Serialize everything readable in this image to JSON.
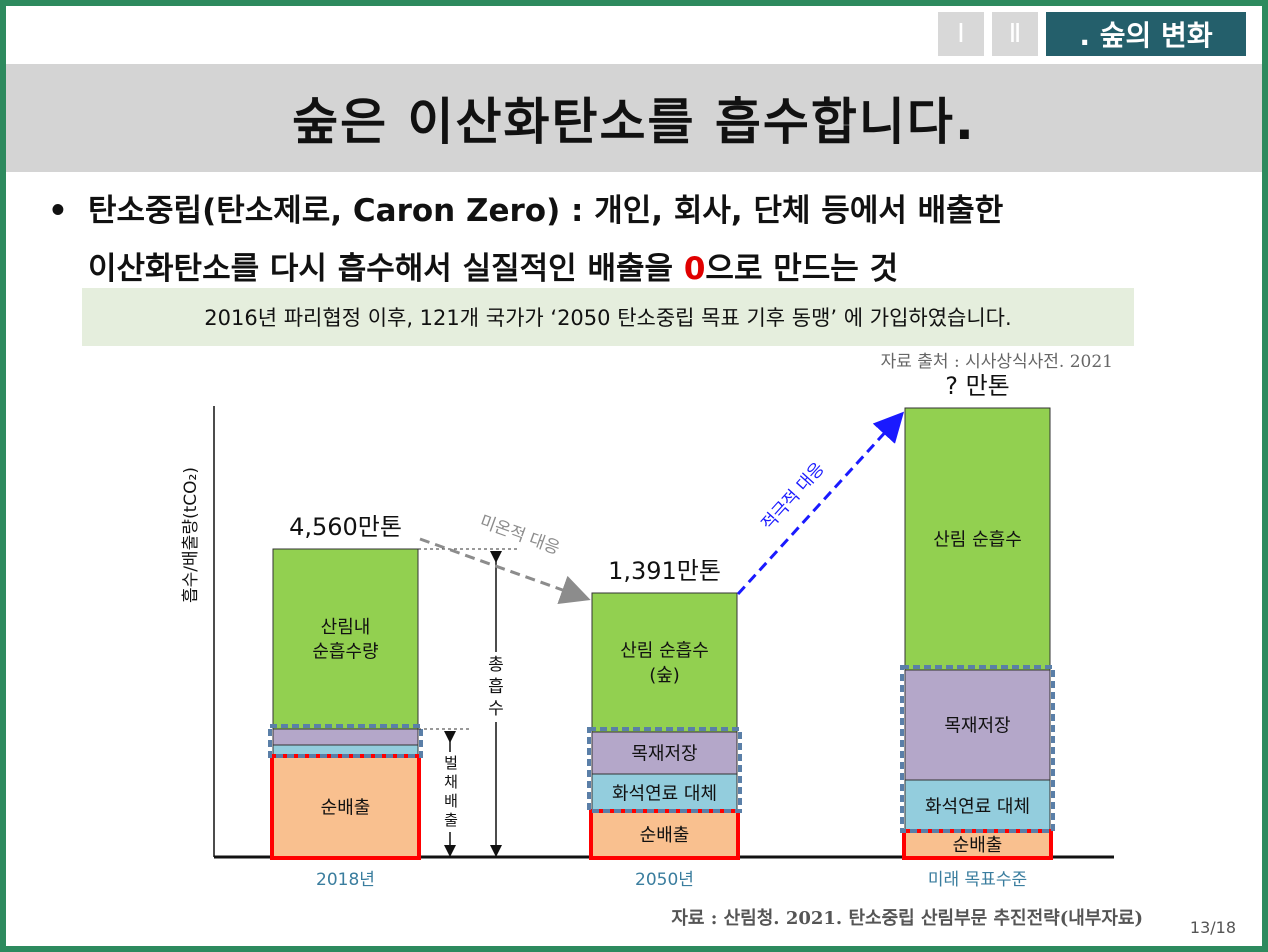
{
  "nav": {
    "roman1": "Ⅰ",
    "roman2": "Ⅱ",
    "chapter": ". 숲의 변화"
  },
  "title": "숲은 이산화탄소를 흡수합니다.",
  "bullet": {
    "symbol": "•",
    "text_part1": "탄소중립(탄소제로, Caron Zero) : 개인, 회사, 단체 등에서 배출한",
    "text_part2_a": "이산화탄소를 다시 흡수해서 실질적인 배출을 ",
    "zero": "0",
    "text_part2_b": "으로 만드는 것"
  },
  "info_box": "2016년 파리협정 이후, 121개 국가가 ‘2050 탄소중립 목표 기후 동맹’ 에 가입하였습니다.",
  "source_top": "자료 출처 : 시사상식사전. 2021",
  "source_bottom": "자료 : 산림청. 2021. 탄소중립 산림부문 추진전략(내부자료)",
  "page_number": "13/18",
  "colors": {
    "green": "#92d050",
    "purple": "#b4a7c9",
    "blue": "#93cddd",
    "orange": "#f9c08f",
    "red_border": "#ff0000",
    "dashed_border": "#5a7fa8",
    "category_text": "#3a7d9e",
    "grey_arrow": "#8c8c8c",
    "blue_arrow": "#1a1aff"
  },
  "chart_data": {
    "type": "bar",
    "stacked": true,
    "categories": [
      "2018년",
      "2050년",
      "미래 목표수준"
    ],
    "ylabel": "흡수/배출량(tCO₂)",
    "ylabel_sub": "2",
    "series": [
      {
        "name": "순배출",
        "labels": [
          "순배출",
          "순배출",
          "순배출"
        ],
        "values": [
          1.0,
          0.45,
          0.25
        ]
      },
      {
        "name": "화석연료 대체",
        "labels": [
          "",
          "화석연료 대체",
          "화석연료 대체"
        ],
        "values": [
          0.12,
          0.38,
          0.52
        ]
      },
      {
        "name": "목재저장",
        "labels": [
          "",
          "목재저장",
          "목재저장"
        ],
        "values": [
          0.16,
          0.42,
          1.1
        ]
      },
      {
        "name": "산림 순흡수",
        "labels": [
          "산림내\n순흡수량",
          "산림 순흡수\n(숲)",
          "산림 순흡수"
        ],
        "values": [
          1.8,
          1.39,
          2.62
        ]
      }
    ],
    "totals_labels": [
      "4,560만톤",
      "1,391만톤",
      "? 만톤"
    ],
    "annotations": [
      {
        "text": "미온적 대응",
        "from": "2018년",
        "to": "2050년"
      },
      {
        "text": "적극적 대응",
        "from": "2050년",
        "to": "미래 목표수준"
      },
      {
        "text": "총흡수",
        "at": "2018년"
      },
      {
        "text": "벌채배출",
        "at": "2018년"
      }
    ]
  }
}
